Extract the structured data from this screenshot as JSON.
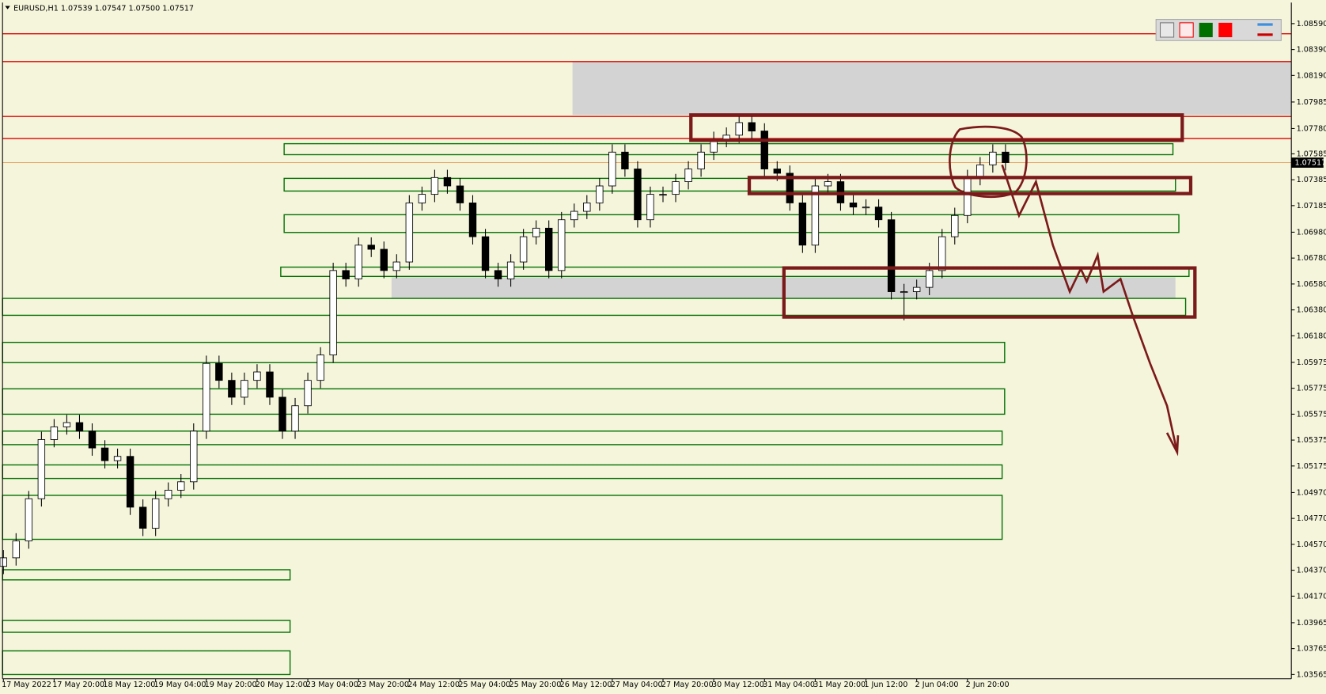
{
  "chart_data": {
    "type": "candlestick",
    "header": "EURUSD,H1  1.07539 1.07547 1.07500 1.07517",
    "last_price": 1.07517,
    "up_color": "#ffffff",
    "down_color": "#000000",
    "level_color": "#e00000",
    "levels": [
      1.08512,
      1.08297,
      1.07873,
      1.07703
    ],
    "ylim": [
      1.03532,
      1.08753
    ],
    "yticks": [
      {
        "value": 1.0859,
        "label": "1.08590"
      },
      {
        "value": 1.0839,
        "label": "1.08390"
      },
      {
        "value": 1.0819,
        "label": "1.08190"
      },
      1.07985,
      {
        "value": 1.0778,
        "label": "1.07780"
      },
      1.07585,
      1.07385,
      1.07185,
      {
        "value": 1.0698,
        "label": "1.06980"
      },
      {
        "value": 1.0678,
        "label": "1.06780"
      },
      {
        "value": 1.0658,
        "label": "1.06580"
      },
      {
        "value": 1.0638,
        "label": "1.06380"
      },
      {
        "value": 1.0618,
        "label": "1.06180"
      },
      1.05975,
      1.05775,
      1.05575,
      1.05375,
      1.05175,
      {
        "value": 1.0497,
        "label": "1.04970"
      },
      {
        "value": 1.0477,
        "label": "1.04770"
      },
      {
        "value": 1.0457,
        "label": "1.04570"
      },
      {
        "value": 1.0437,
        "label": "1.04370"
      },
      {
        "value": 1.0417,
        "label": "1.04170"
      },
      1.03965,
      1.03765,
      1.03565
    ],
    "categories": [
      "17 May 2022",
      null,
      null,
      null,
      "17 May 20:00",
      null,
      null,
      null,
      "18 May 12:00",
      null,
      null,
      null,
      "19 May 04:00",
      null,
      null,
      null,
      "19 May 20:00",
      null,
      null,
      null,
      "20 May 12:00",
      null,
      null,
      null,
      "23 May 04:00",
      null,
      null,
      null,
      "23 May 20:00",
      null,
      null,
      null,
      "24 May 12:00",
      null,
      null,
      null,
      "25 May 04:00",
      null,
      null,
      null,
      "25 May 20:00",
      null,
      null,
      null,
      "26 May 12:00",
      null,
      null,
      null,
      "27 May 04:00",
      null,
      null,
      null,
      "27 May 20:00",
      null,
      null,
      null,
      "30 May 12:00",
      null,
      null,
      null,
      "31 May 04:00",
      null,
      null,
      null,
      "31 May 20:00",
      null,
      null,
      null,
      "1 Jun 12:00",
      null,
      null,
      null,
      "2 Jun 04:00",
      null,
      null,
      null,
      "2 Jun 20:00",
      null,
      null,
      null
    ],
    "open": [
      1.044,
      1.04466,
      1.04596,
      1.04922,
      1.05379,
      1.05477,
      1.0551,
      1.05444,
      1.05314,
      1.05216,
      1.05249,
      1.04857,
      1.04694,
      1.04922,
      1.04988,
      1.05053,
      1.05444,
      1.05967,
      1.05836,
      1.05706,
      1.05836,
      1.05901,
      1.05706,
      1.05444,
      1.0564,
      1.05836,
      1.06032,
      1.06684,
      1.06619,
      1.0688,
      1.06848,
      1.06684,
      1.0675,
      1.07206,
      1.07272,
      1.07402,
      1.07337,
      1.07206,
      1.06945,
      1.06684,
      1.06619,
      1.0675,
      1.06945,
      1.07011,
      1.06684,
      1.07076,
      1.07141,
      1.07206,
      1.07337,
      1.07598,
      1.07468,
      1.07076,
      1.07272,
      1.07272,
      1.0737,
      1.07468,
      1.07598,
      1.07696,
      1.07729,
      1.07826,
      1.07761,
      1.07468,
      1.07435,
      1.07206,
      1.0688,
      1.07337,
      1.0737,
      1.07206,
      1.07174,
      1.07174,
      1.07076,
      1.06521,
      1.06521,
      1.06554,
      1.06684,
      1.06945,
      1.07109,
      1.07402,
      1.075,
      1.07598
    ],
    "high": [
      1.04526,
      1.04656,
      1.04982,
      1.05439,
      1.05537,
      1.0557,
      1.0557,
      1.05504,
      1.05374,
      1.05309,
      1.05309,
      1.04917,
      1.04982,
      1.05048,
      1.05113,
      1.05504,
      1.06027,
      1.06027,
      1.05896,
      1.05896,
      1.05961,
      1.05961,
      1.05766,
      1.057,
      1.05896,
      1.06092,
      1.06744,
      1.06744,
      1.0694,
      1.0694,
      1.06908,
      1.0681,
      1.07266,
      1.07332,
      1.07462,
      1.07462,
      1.07397,
      1.07266,
      1.07005,
      1.06744,
      1.0681,
      1.07005,
      1.07071,
      1.07071,
      1.07136,
      1.07201,
      1.07266,
      1.07397,
      1.07658,
      1.07658,
      1.07528,
      1.07332,
      1.07332,
      1.0743,
      1.07528,
      1.07658,
      1.07756,
      1.07789,
      1.07886,
      1.07886,
      1.07821,
      1.07528,
      1.07495,
      1.07266,
      1.07397,
      1.0743,
      1.0743,
      1.07266,
      1.07234,
      1.07234,
      1.07136,
      1.06581,
      1.06614,
      1.06744,
      1.07005,
      1.07169,
      1.07462,
      1.0756,
      1.07658,
      1.07658
    ],
    "low": [
      1.0434,
      1.04406,
      1.04536,
      1.04862,
      1.05319,
      1.05417,
      1.05384,
      1.05254,
      1.05156,
      1.05156,
      1.04797,
      1.04634,
      1.04634,
      1.04862,
      1.04928,
      1.04993,
      1.05384,
      1.05776,
      1.05646,
      1.05646,
      1.05776,
      1.05646,
      1.05384,
      1.05384,
      1.0558,
      1.05776,
      1.05972,
      1.06559,
      1.06559,
      1.06788,
      1.06624,
      1.06624,
      1.0669,
      1.07146,
      1.07212,
      1.07277,
      1.07146,
      1.06885,
      1.06624,
      1.06559,
      1.06559,
      1.0669,
      1.06885,
      1.06624,
      1.06624,
      1.07016,
      1.07081,
      1.07146,
      1.07277,
      1.07408,
      1.07016,
      1.07016,
      1.07212,
      1.07212,
      1.0731,
      1.07408,
      1.07538,
      1.07636,
      1.07669,
      1.07701,
      1.07408,
      1.07375,
      1.07146,
      1.0682,
      1.0682,
      1.07277,
      1.07146,
      1.07114,
      1.07114,
      1.07016,
      1.06461,
      1.063,
      1.06461,
      1.06494,
      1.06624,
      1.06885,
      1.07049,
      1.07342,
      1.0744,
      1.07457
    ],
    "close": [
      1.04466,
      1.04596,
      1.04922,
      1.05379,
      1.05477,
      1.0551,
      1.05444,
      1.05314,
      1.05216,
      1.05249,
      1.04857,
      1.04694,
      1.04922,
      1.04988,
      1.05053,
      1.05444,
      1.05967,
      1.05836,
      1.05706,
      1.05836,
      1.05901,
      1.05706,
      1.05444,
      1.0564,
      1.05836,
      1.06032,
      1.06684,
      1.06619,
      1.0688,
      1.06848,
      1.06684,
      1.0675,
      1.07206,
      1.07272,
      1.07402,
      1.07337,
      1.07206,
      1.06945,
      1.06684,
      1.06619,
      1.0675,
      1.06945,
      1.07011,
      1.06684,
      1.07076,
      1.07141,
      1.07206,
      1.07337,
      1.07598,
      1.07468,
      1.07076,
      1.07272,
      1.07272,
      1.0737,
      1.07468,
      1.07598,
      1.07696,
      1.07729,
      1.07826,
      1.07761,
      1.07468,
      1.07435,
      1.07206,
      1.0688,
      1.07337,
      1.0737,
      1.07206,
      1.07174,
      1.07174,
      1.07076,
      1.06521,
      1.06521,
      1.06554,
      1.06684,
      1.06945,
      1.07109,
      1.07402,
      1.075,
      1.07598,
      1.07517
    ]
  }
}
